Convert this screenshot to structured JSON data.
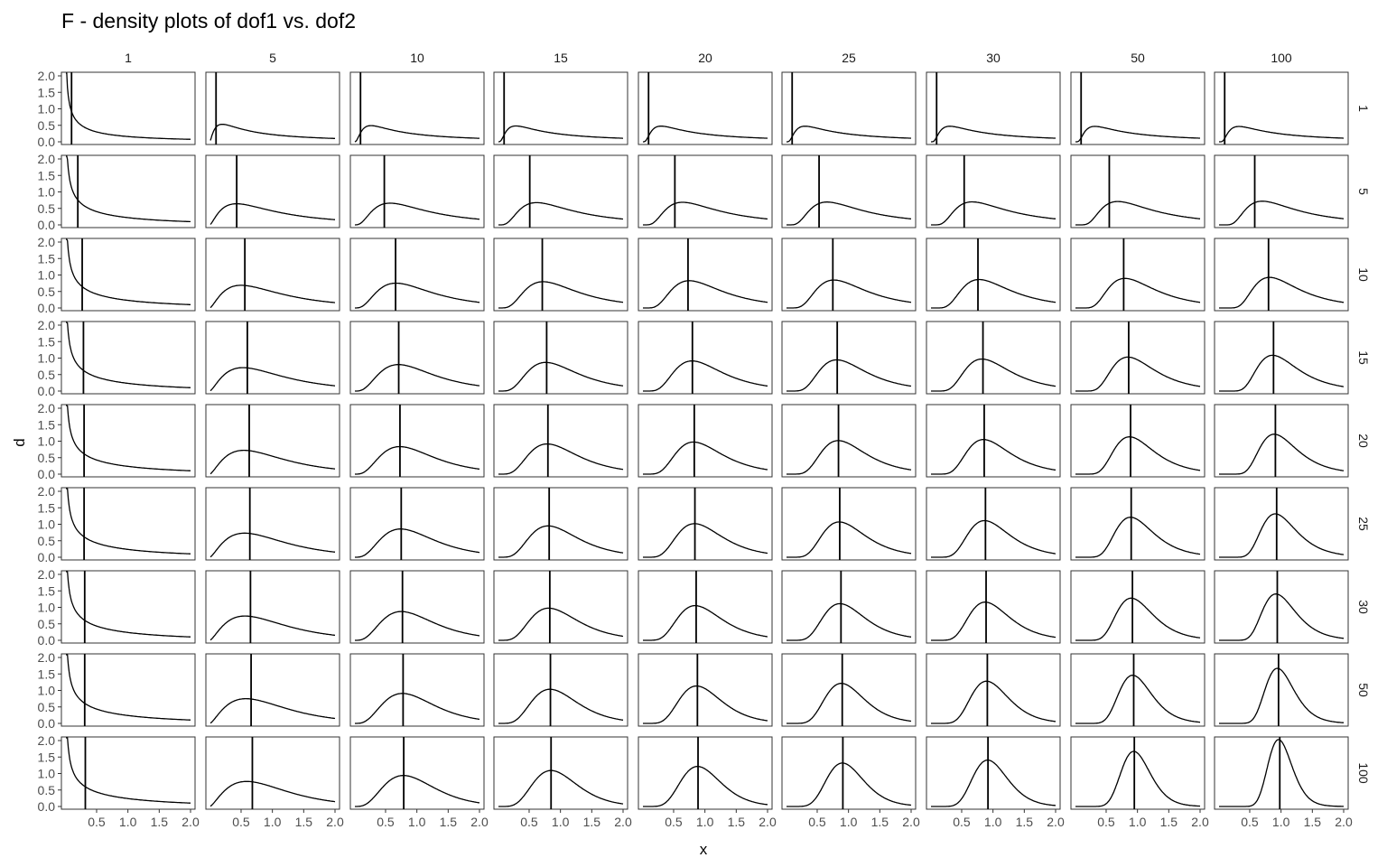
{
  "chart_data": {
    "type": "line",
    "title": "F - density plots of dof1 vs. dof2",
    "xlabel": "x",
    "ylabel": "d",
    "facet_cols_dof1": [
      "1",
      "5",
      "10",
      "15",
      "20",
      "25",
      "30",
      "50",
      "100"
    ],
    "facet_rows_dof2": [
      "1",
      "5",
      "10",
      "15",
      "20",
      "25",
      "30",
      "50",
      "100"
    ],
    "x_ticks": [
      "0.5",
      "1.0",
      "1.5",
      "2.0"
    ],
    "y_ticks": [
      "0.0",
      "0.5",
      "1.0",
      "1.5",
      "2.0"
    ],
    "xlim": [
      0.01,
      2.0
    ],
    "ylim": [
      0,
      2.0
    ],
    "grid": false,
    "series_description": "Each panel: F(dof1, dof2) probability density for x in [0.01, 2.0]; vertical line marks the distribution mode",
    "modes": [
      [
        0.1,
        0.1,
        0.1,
        0.1,
        0.1,
        0.1,
        0.1,
        0.1,
        0.1
      ],
      [
        0.2,
        0.43,
        0.48,
        0.51,
        0.52,
        0.53,
        0.54,
        0.55,
        0.58
      ],
      [
        0.27,
        0.56,
        0.66,
        0.71,
        0.73,
        0.75,
        0.76,
        0.78,
        0.8
      ],
      [
        0.29,
        0.6,
        0.71,
        0.78,
        0.8,
        0.82,
        0.84,
        0.86,
        0.88
      ],
      [
        0.3,
        0.63,
        0.73,
        0.8,
        0.83,
        0.84,
        0.86,
        0.89,
        0.91
      ],
      [
        0.3,
        0.64,
        0.75,
        0.82,
        0.84,
        0.86,
        0.88,
        0.9,
        0.93
      ],
      [
        0.31,
        0.65,
        0.77,
        0.83,
        0.86,
        0.88,
        0.89,
        0.92,
        0.94
      ],
      [
        0.31,
        0.66,
        0.78,
        0.84,
        0.88,
        0.9,
        0.91,
        0.94,
        0.96
      ],
      [
        0.32,
        0.68,
        0.79,
        0.85,
        0.89,
        0.91,
        0.92,
        0.95,
        0.98
      ]
    ]
  }
}
